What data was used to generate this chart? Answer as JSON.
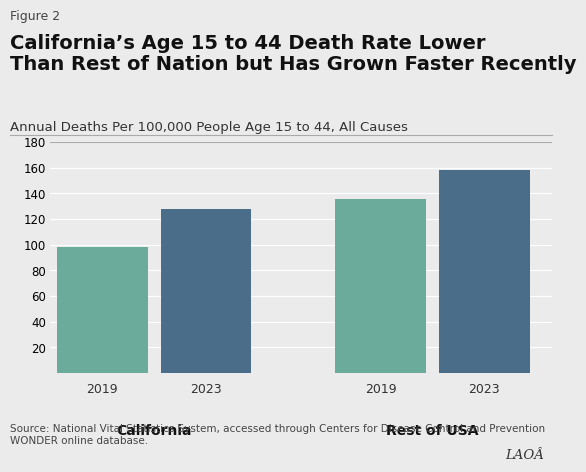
{
  "figure_label": "Figure 2",
  "title": "California’s Age 15 to 44 Death Rate Lower\nThan Rest of Nation but Has Grown Faster Recently",
  "subtitle": "Annual Deaths Per 100,000 People Age 15 to 44, All Causes",
  "groups": [
    "California",
    "Rest of USA"
  ],
  "years": [
    "2019",
    "2023"
  ],
  "values": {
    "California": [
      98,
      128
    ],
    "Rest of USA": [
      136,
      158
    ]
  },
  "bar_colors": {
    "2019": "#6aab9c",
    "2023": "#4a6e8a"
  },
  "ylim": [
    0,
    180
  ],
  "yticks": [
    20,
    40,
    60,
    80,
    100,
    120,
    140,
    160,
    180
  ],
  "background_color": "#ebebeb",
  "source_text": "Source: National Vital Statistics System, accessed through Centers for Disease Control and Prevention\nWONDER online database.",
  "figure_label_fontsize": 9,
  "title_fontsize": 14,
  "subtitle_fontsize": 9.5,
  "group_label_fontsize": 10,
  "year_label_fontsize": 9,
  "source_fontsize": 7.5
}
